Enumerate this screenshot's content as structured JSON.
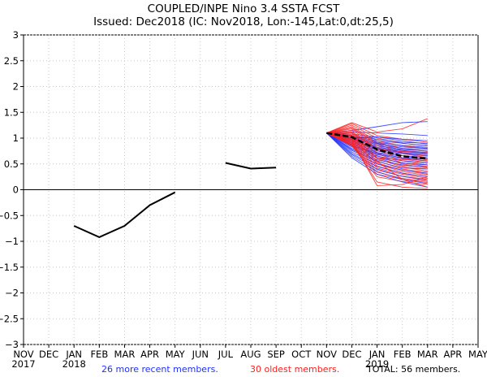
{
  "chart_data": {
    "type": "line",
    "title": "COUPLED/INPE Nino 3.4 SSTA FCST",
    "subtitle": "Issued: Dec2018 (IC: Nov2018, Lon:-145,Lat:0,dt:25,5)",
    "xlabel": "",
    "ylabel": "",
    "ylim": [
      -3,
      3
    ],
    "grid": true,
    "yticks": [
      3,
      2.5,
      2,
      1.5,
      1,
      0.5,
      0,
      -0.5,
      -1,
      -1.5,
      -2,
      -2.5,
      -3
    ],
    "ytick_labels": [
      "3",
      "2.5",
      "2",
      "1.5",
      "1",
      "0.5",
      "0",
      "-0.5",
      "-1",
      "-1.5",
      "-2",
      "-2.5",
      "-3"
    ],
    "x_categories": [
      "NOV",
      "DEC",
      "JAN",
      "FEB",
      "MAR",
      "APR",
      "MAY",
      "JUN",
      "JUL",
      "AUG",
      "SEP",
      "OCT",
      "NOV",
      "DEC",
      "JAN",
      "FEB",
      "MAR",
      "APR",
      "MAY"
    ],
    "x_year_labels": [
      {
        "index": 0,
        "label": "2017"
      },
      {
        "index": 2,
        "label": "2018"
      },
      {
        "index": 14,
        "label": "2019"
      }
    ],
    "observed": {
      "name": "Observed",
      "color": "#000000",
      "segments": [
        {
          "start_index": 2,
          "values": [
            -0.7,
            -0.92,
            -0.7,
            -0.3,
            -0.05
          ]
        },
        {
          "start_index": 8,
          "values": [
            0.52,
            0.41,
            0.43
          ]
        }
      ]
    },
    "forecast_start_index": 12,
    "ensemble_mean": {
      "name": "Ensemble mean",
      "color": "#000000",
      "values": [
        1.1,
        1.02,
        0.78,
        0.65,
        0.6
      ]
    },
    "series": [
      {
        "name": "26 more recent members",
        "color": "#2030ff",
        "members": [
          [
            1.1,
            1.15,
            1.22,
            1.3,
            1.32
          ],
          [
            1.1,
            1.12,
            1.1,
            1.08,
            1.05
          ],
          [
            1.1,
            1.08,
            1.02,
            0.98,
            0.95
          ],
          [
            1.1,
            1.05,
            0.98,
            0.92,
            0.9
          ],
          [
            1.1,
            1.03,
            0.95,
            0.9,
            0.85
          ],
          [
            1.1,
            1.02,
            0.92,
            0.86,
            0.82
          ],
          [
            1.1,
            1.0,
            0.9,
            0.83,
            0.8
          ],
          [
            1.1,
            0.98,
            0.88,
            0.8,
            0.78
          ],
          [
            1.1,
            0.97,
            0.85,
            0.78,
            0.75
          ],
          [
            1.1,
            0.95,
            0.82,
            0.76,
            0.72
          ],
          [
            1.1,
            0.94,
            0.8,
            0.74,
            0.7
          ],
          [
            1.1,
            0.92,
            0.78,
            0.72,
            0.68
          ],
          [
            1.1,
            0.9,
            0.75,
            0.7,
            0.65
          ],
          [
            1.1,
            0.88,
            0.72,
            0.66,
            0.62
          ],
          [
            1.1,
            0.86,
            0.7,
            0.62,
            0.6
          ],
          [
            1.1,
            0.85,
            0.68,
            0.6,
            0.56
          ],
          [
            1.1,
            0.83,
            0.65,
            0.56,
            0.52
          ],
          [
            1.1,
            0.8,
            0.62,
            0.52,
            0.48
          ],
          [
            1.1,
            0.78,
            0.58,
            0.48,
            0.44
          ],
          [
            1.1,
            0.76,
            0.55,
            0.42,
            0.4
          ],
          [
            1.1,
            0.73,
            0.5,
            0.38,
            0.32
          ],
          [
            1.1,
            0.7,
            0.45,
            0.32,
            0.25
          ],
          [
            1.1,
            0.68,
            0.4,
            0.26,
            0.18
          ],
          [
            1.1,
            0.65,
            0.35,
            0.2,
            0.12
          ],
          [
            1.1,
            0.62,
            0.3,
            0.15,
            0.05
          ],
          [
            1.1,
            1.0,
            1.02,
            0.95,
            0.88
          ]
        ]
      },
      {
        "name": "30 oldest members",
        "color": "#ff2020",
        "members": [
          [
            1.1,
            1.3,
            1.12,
            1.18,
            1.38
          ],
          [
            1.1,
            1.28,
            1.05,
            0.98,
            0.92
          ],
          [
            1.1,
            1.25,
            1.0,
            0.9,
            0.85
          ],
          [
            1.1,
            1.22,
            0.95,
            0.85,
            0.8
          ],
          [
            1.1,
            1.2,
            0.92,
            0.8,
            0.74
          ],
          [
            1.1,
            1.18,
            0.9,
            0.76,
            0.7
          ],
          [
            1.1,
            1.15,
            0.88,
            0.72,
            0.66
          ],
          [
            1.1,
            1.12,
            0.85,
            0.7,
            0.62
          ],
          [
            1.1,
            1.1,
            0.82,
            0.66,
            0.58
          ],
          [
            1.1,
            1.08,
            0.8,
            0.62,
            0.55
          ],
          [
            1.1,
            1.06,
            0.76,
            0.6,
            0.52
          ],
          [
            1.1,
            1.05,
            0.72,
            0.56,
            0.48
          ],
          [
            1.1,
            1.03,
            0.7,
            0.52,
            0.45
          ],
          [
            1.1,
            1.02,
            0.66,
            0.5,
            0.42
          ],
          [
            1.1,
            1.0,
            0.62,
            0.46,
            0.4
          ],
          [
            1.1,
            0.98,
            0.6,
            0.44,
            0.36
          ],
          [
            1.1,
            0.97,
            0.56,
            0.4,
            0.34
          ],
          [
            1.1,
            0.95,
            0.52,
            0.38,
            0.3
          ],
          [
            1.1,
            0.94,
            0.5,
            0.35,
            0.28
          ],
          [
            1.1,
            0.92,
            0.46,
            0.32,
            0.25
          ],
          [
            1.1,
            0.9,
            0.42,
            0.3,
            0.22
          ],
          [
            1.1,
            0.88,
            0.38,
            0.26,
            0.2
          ],
          [
            1.1,
            0.87,
            0.34,
            0.22,
            0.16
          ],
          [
            1.1,
            0.86,
            0.3,
            0.2,
            0.14
          ],
          [
            1.1,
            0.85,
            0.25,
            0.16,
            0.1
          ],
          [
            1.1,
            0.9,
            0.15,
            0.05,
            0.02
          ],
          [
            1.1,
            0.95,
            0.08,
            0.1,
            0.25
          ],
          [
            1.1,
            1.0,
            0.55,
            0.2,
            0.05
          ],
          [
            1.1,
            1.05,
            0.62,
            0.58,
            0.6
          ],
          [
            1.1,
            1.12,
            0.78,
            0.74,
            0.72
          ]
        ]
      }
    ],
    "legend": {
      "placement": "bottom",
      "recent_label": "26 more recent members.",
      "recent_color": "#2030ff",
      "oldest_label": "30 oldest members.",
      "oldest_color": "#ff2020",
      "total_label": "TOTAL: 56 members.",
      "total_color": "#000000"
    }
  }
}
